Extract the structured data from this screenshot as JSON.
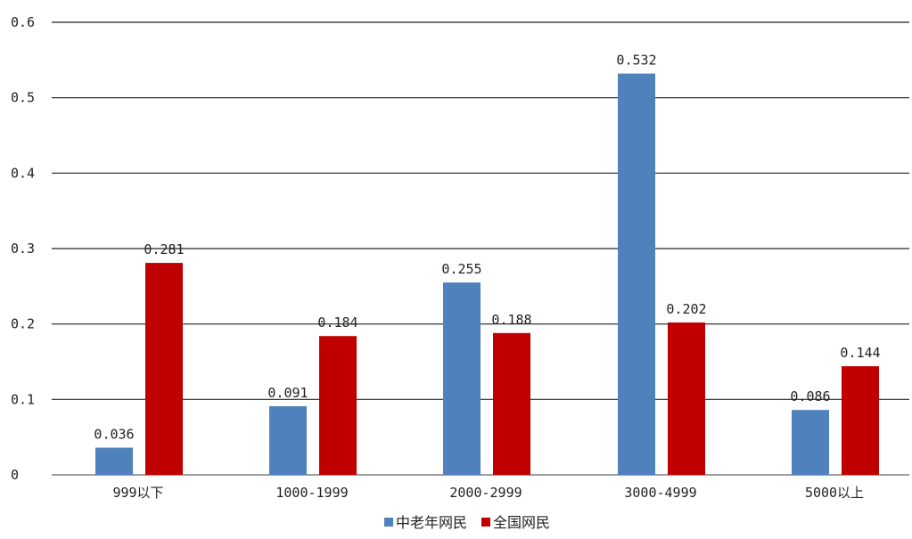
{
  "chart_data": {
    "type": "bar",
    "title": "",
    "xlabel": "",
    "ylabel": "",
    "ylim": [
      0,
      0.6
    ],
    "yticks": [
      0,
      0.1,
      0.2,
      0.3,
      0.4,
      0.5,
      0.6
    ],
    "ytick_labels": [
      "0",
      "0.1",
      "0.2",
      "0.3",
      "0.4",
      "0.5",
      "0.6"
    ],
    "grid": true,
    "legend_position": "bottom",
    "categories": [
      "999以下",
      "1000-1999",
      "2000-2999",
      "3000-4999",
      "5000以上"
    ],
    "series": [
      {
        "name": "中老年网民",
        "color": "#4f81bd",
        "values": [
          0.036,
          0.091,
          0.255,
          0.532,
          0.086
        ],
        "labels": [
          "0.036",
          "0.091",
          "0.255",
          "0.532",
          "0.086"
        ]
      },
      {
        "name": "全国网民",
        "color": "#c00000",
        "values": [
          0.281,
          0.184,
          0.188,
          0.202,
          0.144
        ],
        "labels": [
          "0.281",
          "0.184",
          "0.188",
          "0.202",
          "0.144"
        ]
      }
    ]
  }
}
